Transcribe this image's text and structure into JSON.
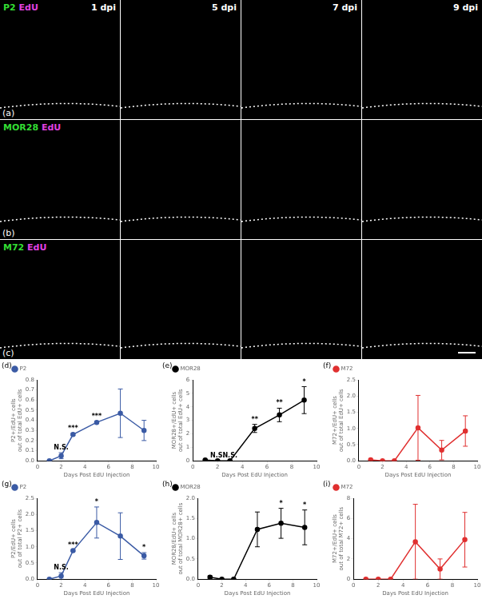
{
  "images": {
    "columns": [
      "1 dpi",
      "5 dpi",
      "7 dpi",
      "9 dpi"
    ],
    "rows": [
      {
        "panel": "(a)",
        "marker": "P2",
        "stain": "EdU"
      },
      {
        "panel": "(b)",
        "marker": "MOR28",
        "stain": "EdU"
      },
      {
        "panel": "(c)",
        "marker": "M72",
        "stain": "EdU"
      }
    ]
  },
  "chart_data": [
    {
      "type": "line",
      "panel": "(d)",
      "x_label": "Days Post EdU Injection",
      "y_label": [
        "P2+/EdU+ cells",
        "out of total EdU+ cells"
      ],
      "x": [
        1,
        2,
        3,
        5,
        7,
        9
      ],
      "series": [
        {
          "name": "P2",
          "color": "#3b5ba5",
          "marker": "circle",
          "values": [
            0.0,
            0.05,
            0.26,
            0.38,
            0.47,
            0.3
          ],
          "errors": [
            0.0,
            0.03,
            0.01,
            0.01,
            0.24,
            0.1
          ]
        }
      ],
      "xlim": [
        0,
        10
      ],
      "xticks": [
        0,
        2,
        4,
        6,
        8,
        10
      ],
      "ylim": [
        0,
        0.8
      ],
      "yticks": [
        {
          "value": 0,
          "label": "0.0"
        },
        {
          "value": 0.1,
          "label": "0.1"
        },
        {
          "value": 0.2,
          "label": "0.2"
        },
        {
          "value": 0.3,
          "label": "0.3"
        },
        {
          "value": 0.4,
          "label": "0.4"
        },
        {
          "value": 0.5,
          "label": "0.5"
        },
        {
          "value": 0.6,
          "label": "0.6"
        },
        {
          "value": 0.7,
          "label": "0.7"
        },
        {
          "value": 0.8,
          "label": "0.8"
        }
      ],
      "annotations": [
        {
          "x": 2,
          "text": "N.S."
        },
        {
          "x": 3,
          "text": "***"
        },
        {
          "x": 5,
          "text": "***"
        }
      ],
      "legend": "upper-left",
      "grid": false
    },
    {
      "type": "line",
      "panel": "(e)",
      "x_label": "Days Post EdU Injection",
      "y_label": [
        "MOR28+/EdU+ cells",
        "out of total EdU+ cells"
      ],
      "x": [
        1,
        2,
        3,
        5,
        7,
        9
      ],
      "series": [
        {
          "name": "MOR28",
          "color": "#000000",
          "marker": "circle",
          "values": [
            0.05,
            0.0,
            0.0,
            2.4,
            3.4,
            4.5
          ],
          "errors": [
            0.05,
            0.0,
            0.0,
            0.3,
            0.5,
            1.0
          ]
        }
      ],
      "xlim": [
        0,
        10
      ],
      "xticks": [
        0,
        2,
        4,
        6,
        8,
        10
      ],
      "ylim": [
        0,
        6
      ],
      "yticks": [
        0,
        1,
        2,
        3,
        4,
        5,
        6
      ],
      "annotations": [
        {
          "x": 2,
          "text": "N.S."
        },
        {
          "x": 3,
          "text": "N.S."
        },
        {
          "x": 5,
          "text": "**"
        },
        {
          "x": 7,
          "text": "**"
        },
        {
          "x": 9,
          "text": "*"
        }
      ],
      "legend": "upper-left",
      "grid": false
    },
    {
      "type": "line",
      "panel": "(f)",
      "x_label": "Days Post EdU Injection",
      "y_label": [
        "M72+/EdU+ cells",
        "out of total EdU+ cells"
      ],
      "x": [
        1,
        2,
        3,
        5,
        7,
        9
      ],
      "series": [
        {
          "name": "M72",
          "color": "#e03030",
          "marker": "circle",
          "values": [
            0.03,
            0.0,
            0.0,
            1.02,
            0.33,
            0.92
          ],
          "errors": [
            0.02,
            0.0,
            0.0,
            1.0,
            0.3,
            0.47
          ]
        }
      ],
      "xlim": [
        0,
        10
      ],
      "xticks": [
        0,
        2,
        4,
        6,
        8,
        10
      ],
      "ylim": [
        0,
        2.5
      ],
      "yticks": [
        {
          "value": 0,
          "label": "0.0"
        },
        {
          "value": 0.5,
          "label": "0.5"
        },
        {
          "value": 1,
          "label": "1.0"
        },
        {
          "value": 1.5,
          "label": "1.5"
        },
        {
          "value": 2,
          "label": "2.0"
        },
        {
          "value": 2.5,
          "label": "2.5"
        }
      ],
      "annotations": [],
      "legend": "upper-left",
      "grid": false
    },
    {
      "type": "line",
      "panel": "(g)",
      "x_label": "Days Post EdU Injection",
      "y_label": [
        "P2/EdU+ cells",
        "out of total P2+ cells"
      ],
      "x": [
        1,
        2,
        3,
        5,
        7,
        9
      ],
      "series": [
        {
          "name": "P2",
          "color": "#3b5ba5",
          "marker": "circle",
          "values": [
            0.0,
            0.1,
            0.88,
            1.75,
            1.33,
            0.72
          ],
          "errors": [
            0.0,
            0.1,
            0.02,
            0.48,
            0.72,
            0.1
          ]
        }
      ],
      "xlim": [
        0,
        10
      ],
      "xticks": [
        0,
        2,
        4,
        6,
        8,
        10
      ],
      "ylim": [
        0,
        2.5
      ],
      "yticks": [
        {
          "value": 0,
          "label": "0.0"
        },
        {
          "value": 0.5,
          "label": "0.5"
        },
        {
          "value": 1,
          "label": "1.0"
        },
        {
          "value": 1.5,
          "label": "1.5"
        },
        {
          "value": 2,
          "label": "2.0"
        },
        {
          "value": 2.5,
          "label": "2.5"
        }
      ],
      "annotations": [
        {
          "x": 2,
          "text": "N.S."
        },
        {
          "x": 3,
          "text": "***"
        },
        {
          "x": 5,
          "text": "*"
        },
        {
          "x": 9,
          "text": "*"
        }
      ],
      "legend": "upper-left",
      "grid": false
    },
    {
      "type": "line",
      "panel": "(h)",
      "x_label": "Days Post EdU Injection",
      "y_label": [
        "MOR28/EdU+ cells",
        "out of total MOR28+ cells"
      ],
      "x": [
        1,
        2,
        3,
        5,
        7,
        9
      ],
      "series": [
        {
          "name": "MOR28",
          "color": "#000000",
          "marker": "circle",
          "values": [
            0.05,
            0.0,
            0.0,
            1.23,
            1.38,
            1.28
          ],
          "errors": [
            0.03,
            0.0,
            0.0,
            0.43,
            0.37,
            0.43
          ]
        }
      ],
      "xlim": [
        0,
        10
      ],
      "xticks": [
        0,
        2,
        4,
        6,
        8,
        10
      ],
      "ylim": [
        0,
        2
      ],
      "yticks": [
        {
          "value": 0,
          "label": "0.0"
        },
        {
          "value": 0.5,
          "label": "0.5"
        },
        {
          "value": 1,
          "label": "1.0"
        },
        {
          "value": 1.5,
          "label": "1.5"
        },
        {
          "value": 2,
          "label": "2.0"
        }
      ],
      "annotations": [
        {
          "x": 7,
          "text": "*"
        },
        {
          "x": 9,
          "text": "*"
        }
      ],
      "legend": "upper-left",
      "grid": false
    },
    {
      "type": "line",
      "panel": "(i)",
      "x_label": "Days Post EdU Injection",
      "y_label": [
        "M72+/EdU+ cells",
        "out of total M72+ cells"
      ],
      "x": [
        1,
        2,
        3,
        5,
        7,
        9
      ],
      "series": [
        {
          "name": "M72",
          "color": "#e03030",
          "marker": "circle",
          "values": [
            0.0,
            0.0,
            0.0,
            3.7,
            1.0,
            3.9
          ],
          "errors": [
            0.0,
            0.0,
            0.0,
            3.7,
            1.0,
            2.7
          ]
        }
      ],
      "xlim": [
        0,
        10
      ],
      "xticks": [
        0,
        2,
        4,
        6,
        8,
        10
      ],
      "ylim": [
        0,
        8
      ],
      "yticks": [
        0,
        2,
        4,
        6,
        8
      ],
      "annotations": [],
      "legend": "upper-left",
      "grid": false
    }
  ]
}
